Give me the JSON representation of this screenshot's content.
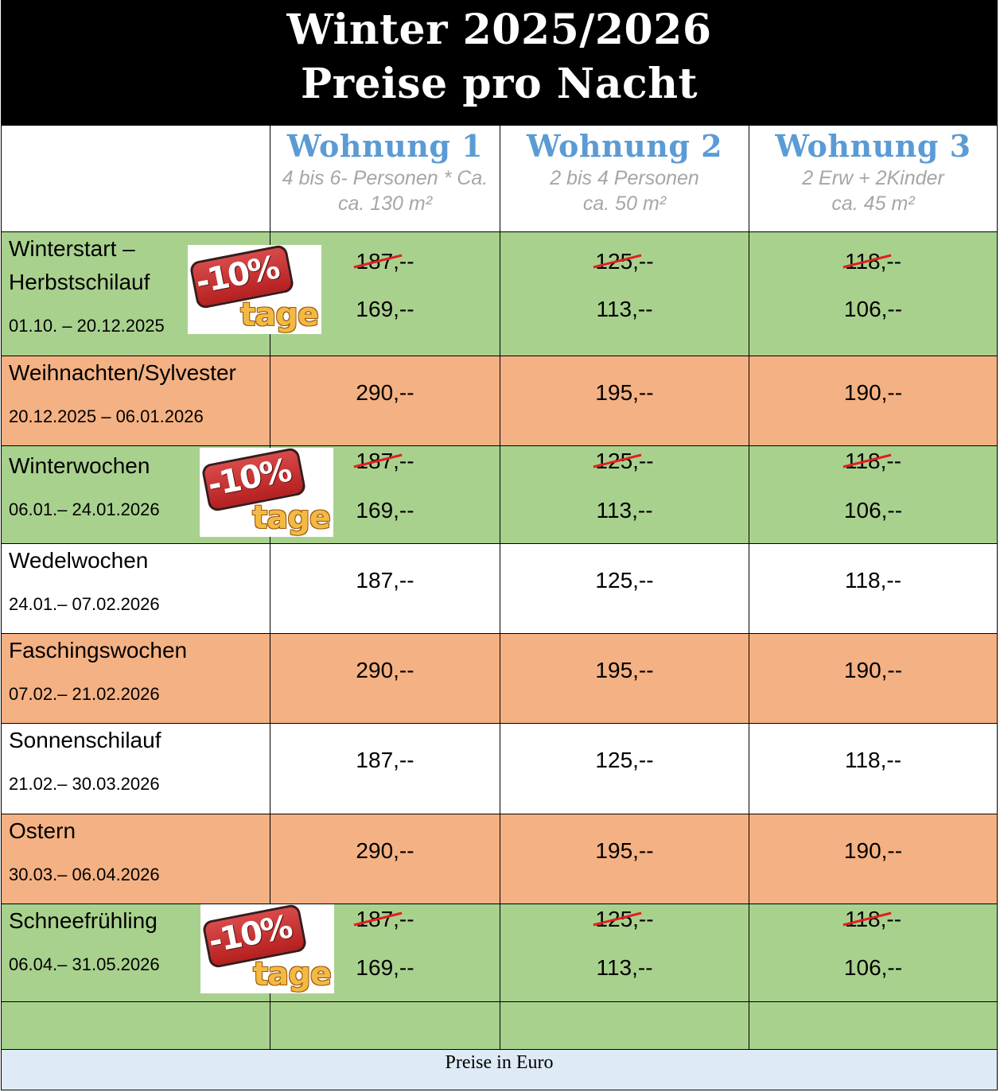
{
  "header": {
    "line1": "Winter 2025/2026",
    "line2": "Preise pro Nacht"
  },
  "apartments": [
    {
      "name": "Wohnung 1",
      "sub1": "4 bis 6- Personen * Ca.",
      "sub2": "ca. 130 m²"
    },
    {
      "name": "Wohnung 2",
      "sub1": "2 bis 4 Personen",
      "sub2": "ca. 50 m²"
    },
    {
      "name": "Wohnung 3",
      "sub1": "2 Erw + 2Kinder",
      "sub2": "ca. 45 m²"
    }
  ],
  "badge": {
    "percent": "-10%",
    "word": "tage"
  },
  "seasons": [
    {
      "name_line1": "Winterstart –",
      "name_line2": "Herbstschilauf",
      "dates": "01.10. – 20.12.2025",
      "color": "#a9d18e",
      "badge": true,
      "old_prices": [
        "187",
        "125",
        "118"
      ],
      "old_suffix": ",--",
      "prices": [
        "169,--",
        "113,--",
        "106,--"
      ]
    },
    {
      "name_line1": "Weihnachten/Sylvester",
      "dates": "20.12.2025 – 06.01.2026",
      "color": "#f4b183",
      "badge": false,
      "prices": [
        "290,--",
        "195,--",
        "190,--"
      ]
    },
    {
      "name_line1": "Winterwochen",
      "dates": "06.01.– 24.01.2026",
      "color": "#a9d18e",
      "badge": true,
      "old_prices": [
        "187",
        "125",
        "118"
      ],
      "old_suffix": ",--",
      "prices": [
        "169,--",
        "113,--",
        "106,--"
      ]
    },
    {
      "name_line1": "Wedelwochen",
      "dates": "24.01.– 07.02.2026",
      "color": "#ffffff",
      "badge": false,
      "prices": [
        "187,--",
        "125,--",
        "118,--"
      ]
    },
    {
      "name_line1": "Faschingswochen",
      "dates": "07.02.– 21.02.2026",
      "color": "#f4b183",
      "badge": false,
      "prices": [
        "290,--",
        "195,--",
        "190,--"
      ]
    },
    {
      "name_line1": "Sonnenschilauf",
      "dates": "21.02.– 30.03.2026",
      "color": "#ffffff",
      "badge": false,
      "prices": [
        "187,--",
        "125,--",
        "118,--"
      ]
    },
    {
      "name_line1": "Ostern",
      "dates": "30.03.– 06.04.2026",
      "color": "#f4b183",
      "badge": false,
      "prices": [
        "290,--",
        "195,--",
        "190,--"
      ]
    },
    {
      "name_line1": "Schneefrühling",
      "dates": "06.04.– 31.05.2026",
      "color": "#a9d18e",
      "badge": true,
      "old_prices": [
        "187",
        "125",
        "118"
      ],
      "old_suffix": ",--",
      "prices": [
        "169,--",
        "113,--",
        "106,--"
      ]
    }
  ],
  "footer": {
    "text": "Preise in Euro"
  }
}
